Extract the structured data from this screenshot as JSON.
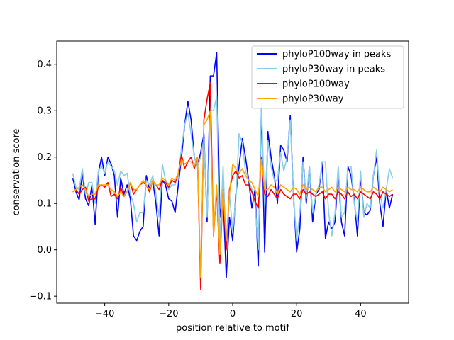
{
  "chart_data": {
    "type": "line",
    "title": "",
    "xlabel": "position relative to motif",
    "ylabel": "conservation score",
    "xlim": [
      -55.0,
      55.0
    ],
    "ylim": [
      -0.115,
      0.45
    ],
    "xticks": [
      -40,
      -20,
      0,
      20,
      40
    ],
    "xtick_labels": [
      "−40",
      "−20",
      "0",
      "20",
      "40"
    ],
    "yticks": [
      -0.1,
      0.0,
      0.1,
      0.2,
      0.3,
      0.4
    ],
    "ytick_labels": [
      "−0.1",
      "0.0",
      "0.1",
      "0.2",
      "0.3",
      "0.4"
    ],
    "grid": false,
    "legend_position": "top-right",
    "x": [
      -50,
      -49,
      -48,
      -47,
      -46,
      -45,
      -44,
      -43,
      -42,
      -41,
      -40,
      -39,
      -38,
      -37,
      -36,
      -35,
      -34,
      -33,
      -32,
      -31,
      -30,
      -29,
      -28,
      -27,
      -26,
      -25,
      -24,
      -23,
      -22,
      -21,
      -20,
      -19,
      -18,
      -17,
      -16,
      -15,
      -14,
      -13,
      -12,
      -11,
      -10,
      -9,
      -8,
      -7,
      -6,
      -5,
      -4,
      -3,
      -2,
      -1,
      0,
      1,
      2,
      3,
      4,
      5,
      6,
      7,
      8,
      9,
      10,
      11,
      12,
      13,
      14,
      15,
      16,
      17,
      18,
      19,
      20,
      21,
      22,
      23,
      24,
      25,
      26,
      27,
      28,
      29,
      30,
      31,
      32,
      33,
      34,
      35,
      36,
      37,
      38,
      39,
      40,
      41,
      42,
      43,
      44,
      45,
      46,
      47,
      48,
      49,
      50
    ],
    "series": [
      {
        "name": "phyloP100way in peaks",
        "color": "#0000ff",
        "values": [
          0.155,
          0.125,
          0.108,
          0.165,
          0.11,
          0.095,
          0.14,
          0.055,
          0.165,
          0.2,
          0.16,
          0.2,
          0.185,
          0.16,
          0.07,
          0.155,
          0.12,
          0.14,
          0.11,
          0.03,
          0.02,
          0.04,
          0.05,
          0.16,
          0.13,
          0.15,
          0.1,
          0.03,
          0.15,
          0.14,
          0.11,
          0.105,
          0.08,
          0.14,
          0.2,
          0.27,
          0.32,
          0.28,
          0.2,
          0.18,
          0.21,
          0.25,
          0.06,
          0.375,
          0.375,
          0.425,
          0.07,
          0.12,
          -0.06,
          0.07,
          0.02,
          0.12,
          0.18,
          0.24,
          0.2,
          0.15,
          0.09,
          0.13,
          -0.035,
          0.31,
          -0.005,
          0.255,
          0.2,
          0.16,
          0.1,
          0.225,
          0.215,
          0.19,
          0.29,
          0.12,
          -0.005,
          0.045,
          0.2,
          0.1,
          0.18,
          0.06,
          0.12,
          0.13,
          0.19,
          0.025,
          0.06,
          0.045,
          0.06,
          0.17,
          0.06,
          0.03,
          0.18,
          0.16,
          0.11,
          0.03,
          0.16,
          0.08,
          0.075,
          0.085,
          0.16,
          0.2,
          0.1,
          0.05,
          0.13,
          0.09,
          0.12
        ]
      },
      {
        "name": "phyloP30way in peaks",
        "color": "#87ceeb",
        "values": [
          0.165,
          0.135,
          0.13,
          0.175,
          0.12,
          0.145,
          0.145,
          0.1,
          0.17,
          0.18,
          0.165,
          0.19,
          0.18,
          0.17,
          0.14,
          0.17,
          0.16,
          0.165,
          0.12,
          0.1,
          0.06,
          0.08,
          0.08,
          0.15,
          0.14,
          0.16,
          0.12,
          0.07,
          0.185,
          0.15,
          0.13,
          0.14,
          0.14,
          0.16,
          0.22,
          0.27,
          0.295,
          0.25,
          0.2,
          0.18,
          0.2,
          0.24,
          0.07,
          0.3,
          0.3,
          0.33,
          0.02,
          0.18,
          0.0,
          0.12,
          0.04,
          0.11,
          0.25,
          0.23,
          0.17,
          0.15,
          0.13,
          0.1,
          0.0,
          0.315,
          0.09,
          0.235,
          0.18,
          0.15,
          0.15,
          0.21,
          0.17,
          0.2,
          0.28,
          0.12,
          0.02,
          0.08,
          0.19,
          0.11,
          0.18,
          0.08,
          0.12,
          0.14,
          0.19,
          0.19,
          0.08,
          0.03,
          0.08,
          0.18,
          0.07,
          0.08,
          0.18,
          0.18,
          0.1,
          0.06,
          0.17,
          0.07,
          0.1,
          0.09,
          0.16,
          0.215,
          0.12,
          0.09,
          0.13,
          0.175,
          0.155
        ]
      },
      {
        "name": "phyloP100way",
        "color": "#ff0000",
        "values": [
          0.125,
          0.13,
          0.12,
          0.13,
          0.135,
          0.105,
          0.11,
          0.11,
          0.135,
          0.14,
          0.135,
          0.145,
          0.115,
          0.12,
          0.11,
          0.135,
          0.115,
          0.125,
          0.145,
          0.12,
          0.13,
          0.14,
          0.145,
          0.14,
          0.125,
          0.15,
          0.14,
          0.13,
          0.15,
          0.145,
          0.135,
          0.15,
          0.145,
          0.165,
          0.205,
          0.175,
          0.19,
          0.2,
          0.175,
          0.2,
          -0.085,
          0.28,
          0.325,
          0.36,
          0.03,
          0.13,
          -0.03,
          0.13,
          0.0,
          0.13,
          0.16,
          0.17,
          0.155,
          0.16,
          0.14,
          0.14,
          0.125,
          0.105,
          0.09,
          0.2,
          0.12,
          0.115,
          0.13,
          0.12,
          0.11,
          0.13,
          0.12,
          0.115,
          0.11,
          0.12,
          0.12,
          0.11,
          0.13,
          0.12,
          0.125,
          0.12,
          0.115,
          0.12,
          0.125,
          0.11,
          0.12,
          0.12,
          0.11,
          0.125,
          0.12,
          0.11,
          0.125,
          0.115,
          0.12,
          0.11,
          0.125,
          0.12,
          0.115,
          0.11,
          0.125,
          0.12,
          0.11,
          0.125,
          0.12,
          0.115,
          0.12
        ]
      },
      {
        "name": "phyloP30way",
        "color": "#ffa500",
        "values": [
          0.125,
          0.13,
          0.135,
          0.14,
          0.13,
          0.115,
          0.12,
          0.12,
          0.14,
          0.14,
          0.14,
          0.14,
          0.13,
          0.125,
          0.115,
          0.125,
          0.115,
          0.125,
          0.145,
          0.13,
          0.13,
          0.14,
          0.15,
          0.14,
          0.13,
          0.15,
          0.14,
          0.14,
          0.155,
          0.15,
          0.14,
          0.155,
          0.15,
          0.165,
          0.195,
          0.185,
          0.19,
          0.19,
          0.18,
          0.2,
          -0.06,
          0.27,
          0.28,
          0.3,
          0.03,
          0.14,
          -0.01,
          0.13,
          0.02,
          0.12,
          0.185,
          0.175,
          0.165,
          0.175,
          0.16,
          0.15,
          0.145,
          0.13,
          0.115,
          0.195,
          0.13,
          0.13,
          0.14,
          0.135,
          0.12,
          0.14,
          0.135,
          0.13,
          0.125,
          0.135,
          0.13,
          0.12,
          0.14,
          0.13,
          0.135,
          0.13,
          0.125,
          0.135,
          0.135,
          0.125,
          0.13,
          0.135,
          0.125,
          0.135,
          0.13,
          0.125,
          0.135,
          0.13,
          0.13,
          0.125,
          0.135,
          0.13,
          0.125,
          0.125,
          0.135,
          0.13,
          0.125,
          0.135,
          0.13,
          0.125,
          0.13
        ]
      }
    ]
  }
}
